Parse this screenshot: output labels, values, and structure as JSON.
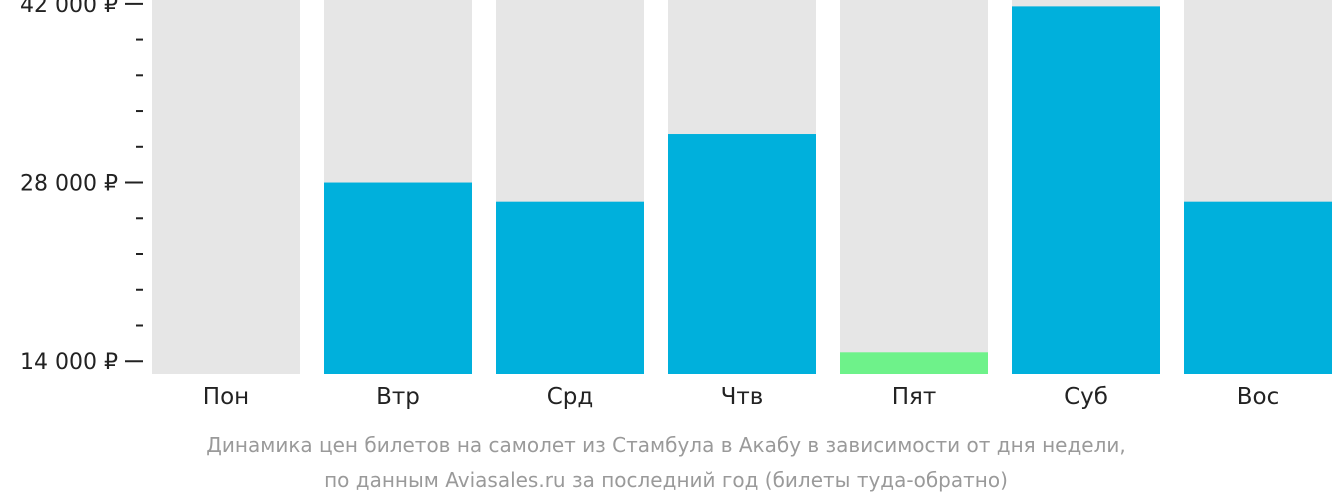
{
  "chart_data": {
    "type": "bar",
    "categories": [
      "Пон",
      "Втр",
      "Срд",
      "Чтв",
      "Пят",
      "Суб",
      "Вос"
    ],
    "values": [
      null,
      28000,
      26500,
      31800,
      14700,
      41800,
      26500
    ],
    "y_tick_labels": [
      "42 000 ₽",
      "28 000 ₽",
      "14 000 ₽"
    ],
    "y_tick_values": [
      42000,
      28000,
      14000
    ],
    "ylim": [
      13000,
      42300
    ],
    "minor_ticks_between_labels": 4,
    "colors": {
      "bar": "#00b0dc",
      "cheapest": "#6ef28a",
      "background_bar": "#e6e6e6",
      "axis": "#222222"
    },
    "cheapest_index": 4,
    "grid": false
  },
  "caption": {
    "line1": "Динамика цен билетов на самолет из Стамбула в Акабу в зависимости от дня недели,",
    "line2": "по данным Aviasales.ru за последний год (билеты туда-обратно)"
  }
}
